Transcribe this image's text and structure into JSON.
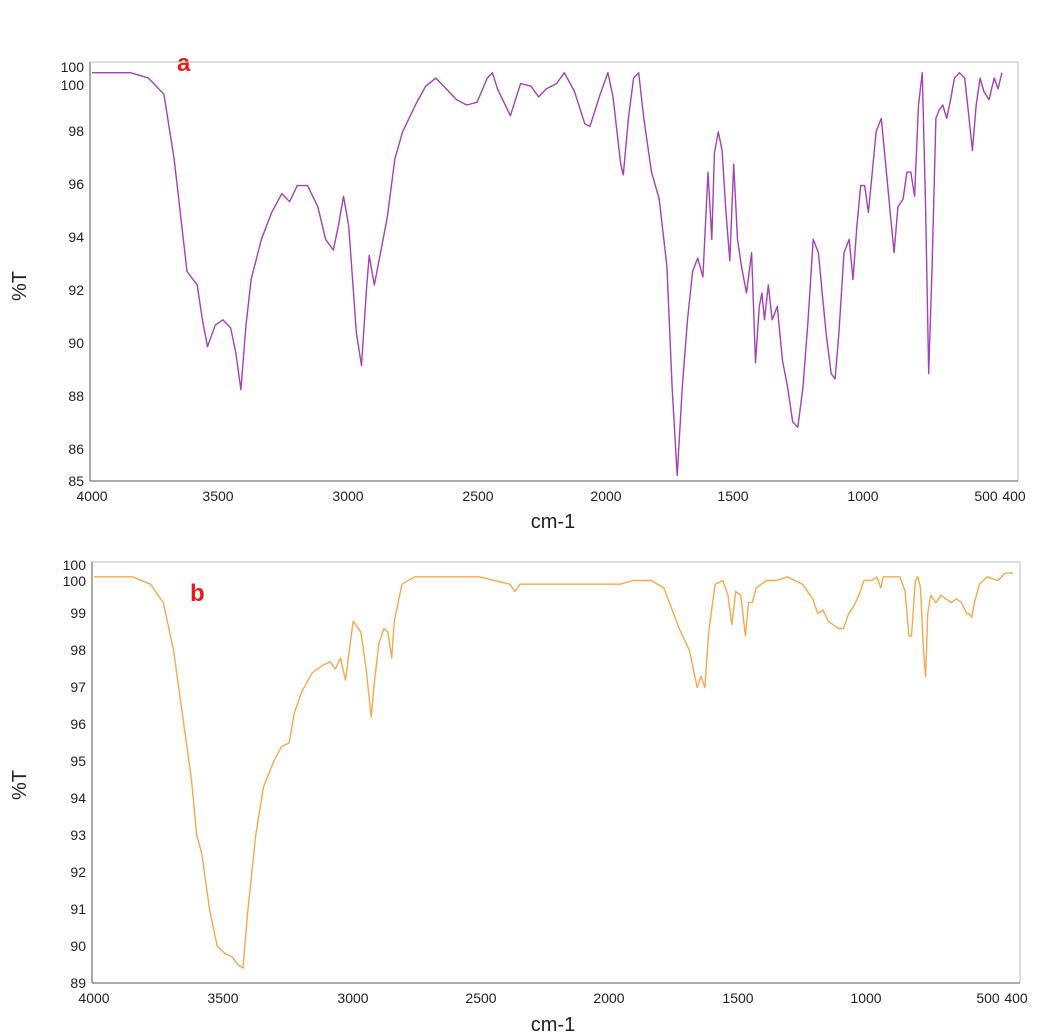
{
  "chart_data": [
    {
      "type": "line",
      "panel_label": "a",
      "panel_label_color": "#e41c1c",
      "xlabel": "cm-1",
      "ylabel": "%T",
      "xlim": [
        4000,
        400
      ],
      "ylim": [
        85,
        100.6
      ],
      "x_ticks": [
        "4000",
        "3500",
        "3000",
        "2500",
        "2000",
        "1500",
        "1000",
        "500",
        "400"
      ],
      "y_ticks": [
        "85",
        "86",
        "88",
        "90",
        "92",
        "94",
        "96",
        "98",
        "100",
        "100"
      ],
      "grid": false,
      "legend": "none",
      "series": [
        {
          "color": "#a341b5",
          "points": [
            [
              4000,
              100.2
            ],
            [
              3850,
              100.2
            ],
            [
              3780,
              100.0
            ],
            [
              3720,
              99.4
            ],
            [
              3680,
              97.0
            ],
            [
              3650,
              94.5
            ],
            [
              3630,
              92.8
            ],
            [
              3590,
              92.3
            ],
            [
              3570,
              91.0
            ],
            [
              3550,
              90.0
            ],
            [
              3520,
              90.8
            ],
            [
              3490,
              91.0
            ],
            [
              3460,
              90.7
            ],
            [
              3440,
              89.8
            ],
            [
              3420,
              88.4
            ],
            [
              3400,
              90.8
            ],
            [
              3380,
              92.5
            ],
            [
              3340,
              94.0
            ],
            [
              3300,
              95.0
            ],
            [
              3260,
              95.7
            ],
            [
              3230,
              95.4
            ],
            [
              3200,
              96.0
            ],
            [
              3160,
              96.0
            ],
            [
              3120,
              95.2
            ],
            [
              3090,
              94.0
            ],
            [
              3060,
              93.6
            ],
            [
              3040,
              94.5
            ],
            [
              3020,
              95.6
            ],
            [
              3000,
              94.5
            ],
            [
              2970,
              90.5
            ],
            [
              2950,
              89.3
            ],
            [
              2930,
              92.2
            ],
            [
              2920,
              93.4
            ],
            [
              2900,
              92.3
            ],
            [
              2880,
              93.3
            ],
            [
              2850,
              94.8
            ],
            [
              2820,
              97.0
            ],
            [
              2790,
              98.0
            ],
            [
              2740,
              99.0
            ],
            [
              2700,
              99.7
            ],
            [
              2660,
              100.0
            ],
            [
              2620,
              99.6
            ],
            [
              2580,
              99.2
            ],
            [
              2540,
              99.0
            ],
            [
              2500,
              99.1
            ],
            [
              2460,
              100.0
            ],
            [
              2440,
              100.2
            ],
            [
              2420,
              99.6
            ],
            [
              2370,
              98.6
            ],
            [
              2330,
              99.8
            ],
            [
              2290,
              99.7
            ],
            [
              2260,
              99.3
            ],
            [
              2230,
              99.6
            ],
            [
              2190,
              99.8
            ],
            [
              2160,
              100.2
            ],
            [
              2120,
              99.5
            ],
            [
              2080,
              98.3
            ],
            [
              2060,
              98.2
            ],
            [
              2020,
              99.4
            ],
            [
              1990,
              100.2
            ],
            [
              1970,
              99.3
            ],
            [
              1940,
              96.8
            ],
            [
              1930,
              96.4
            ],
            [
              1910,
              98.5
            ],
            [
              1890,
              100.0
            ],
            [
              1870,
              100.2
            ],
            [
              1850,
              98.5
            ],
            [
              1820,
              96.5
            ],
            [
              1790,
              95.5
            ],
            [
              1760,
              93.0
            ],
            [
              1740,
              88.5
            ],
            [
              1720,
              85.2
            ],
            [
              1700,
              88.5
            ],
            [
              1680,
              91.0
            ],
            [
              1660,
              92.8
            ],
            [
              1640,
              93.3
            ],
            [
              1620,
              92.6
            ],
            [
              1600,
              96.5
            ],
            [
              1585,
              94.0
            ],
            [
              1575,
              97.2
            ],
            [
              1560,
              98.0
            ],
            [
              1545,
              97.3
            ],
            [
              1530,
              95.0
            ],
            [
              1515,
              93.2
            ],
            [
              1500,
              96.8
            ],
            [
              1485,
              94.0
            ],
            [
              1470,
              93.0
            ],
            [
              1450,
              92.0
            ],
            [
              1430,
              93.5
            ],
            [
              1415,
              89.4
            ],
            [
              1400,
              91.5
            ],
            [
              1390,
              92.0
            ],
            [
              1380,
              91.0
            ],
            [
              1365,
              92.3
            ],
            [
              1350,
              91.0
            ],
            [
              1330,
              91.5
            ],
            [
              1310,
              89.5
            ],
            [
              1290,
              88.5
            ],
            [
              1270,
              87.2
            ],
            [
              1250,
              87.0
            ],
            [
              1230,
              88.5
            ],
            [
              1210,
              91.0
            ],
            [
              1190,
              94.0
            ],
            [
              1170,
              93.5
            ],
            [
              1155,
              92.0
            ],
            [
              1140,
              90.5
            ],
            [
              1120,
              89.0
            ],
            [
              1105,
              88.8
            ],
            [
              1090,
              90.5
            ],
            [
              1070,
              93.5
            ],
            [
              1050,
              94.0
            ],
            [
              1035,
              92.5
            ],
            [
              1020,
              94.5
            ],
            [
              1005,
              96.0
            ],
            [
              990,
              96.0
            ],
            [
              975,
              95.0
            ],
            [
              960,
              96.5
            ],
            [
              945,
              98.0
            ],
            [
              925,
              98.5
            ],
            [
              905,
              96.5
            ],
            [
              890,
              95.0
            ],
            [
              875,
              93.5
            ],
            [
              860,
              95.2
            ],
            [
              840,
              95.5
            ],
            [
              825,
              96.5
            ],
            [
              810,
              96.5
            ],
            [
              795,
              95.6
            ],
            [
              780,
              99.0
            ],
            [
              765,
              100.2
            ],
            [
              752,
              95.0
            ],
            [
              740,
              89.0
            ],
            [
              727,
              93.0
            ],
            [
              712,
              98.5
            ],
            [
              700,
              98.8
            ],
            [
              685,
              99.0
            ],
            [
              670,
              98.5
            ],
            [
              655,
              99.2
            ],
            [
              640,
              100.0
            ],
            [
              620,
              100.2
            ],
            [
              600,
              100.0
            ],
            [
              585,
              98.7
            ],
            [
              570,
              97.3
            ],
            [
              555,
              99.0
            ],
            [
              540,
              100.0
            ],
            [
              525,
              99.5
            ],
            [
              505,
              99.2
            ],
            [
              485,
              100.0
            ],
            [
              470,
              99.6
            ],
            [
              455,
              100.2
            ]
          ]
        }
      ]
    },
    {
      "type": "line",
      "panel_label": "b",
      "panel_label_color": "#e41c1c",
      "xlabel": "cm-1",
      "ylabel": "%T",
      "xlim": [
        4000,
        400
      ],
      "ylim": [
        89,
        100.4
      ],
      "x_ticks": [
        "4000",
        "3500",
        "3000",
        "2500",
        "2000",
        "1500",
        "1000",
        "500",
        "400"
      ],
      "y_ticks": [
        "89",
        "90",
        "91",
        "92",
        "93",
        "94",
        "95",
        "96",
        "97",
        "98",
        "99",
        "100",
        "100"
      ],
      "grid": false,
      "legend": "none",
      "series": [
        {
          "color": "#f7a84c",
          "points": [
            [
              4000,
              100.0
            ],
            [
              3850,
              100.0
            ],
            [
              3780,
              99.8
            ],
            [
              3730,
              99.3
            ],
            [
              3690,
              98.0
            ],
            [
              3650,
              96.0
            ],
            [
              3620,
              94.5
            ],
            [
              3600,
              93.0
            ],
            [
              3580,
              92.5
            ],
            [
              3550,
              91.0
            ],
            [
              3520,
              90.0
            ],
            [
              3490,
              89.8
            ],
            [
              3460,
              89.7
            ],
            [
              3440,
              89.5
            ],
            [
              3420,
              89.4
            ],
            [
              3400,
              91.0
            ],
            [
              3370,
              93.0
            ],
            [
              3340,
              94.3
            ],
            [
              3300,
              95.0
            ],
            [
              3270,
              95.4
            ],
            [
              3240,
              95.5
            ],
            [
              3220,
              96.3
            ],
            [
              3190,
              96.9
            ],
            [
              3150,
              97.4
            ],
            [
              3110,
              97.6
            ],
            [
              3080,
              97.7
            ],
            [
              3060,
              97.5
            ],
            [
              3040,
              97.8
            ],
            [
              3020,
              97.2
            ],
            [
              3000,
              98.3
            ],
            [
              2990,
              98.8
            ],
            [
              2960,
              98.5
            ],
            [
              2940,
              97.5
            ],
            [
              2920,
              96.2
            ],
            [
              2910,
              97.0
            ],
            [
              2890,
              98.2
            ],
            [
              2870,
              98.6
            ],
            [
              2855,
              98.5
            ],
            [
              2840,
              97.8
            ],
            [
              2830,
              98.8
            ],
            [
              2800,
              99.8
            ],
            [
              2750,
              100.0
            ],
            [
              2500,
              100.0
            ],
            [
              2380,
              99.8
            ],
            [
              2360,
              99.6
            ],
            [
              2340,
              99.8
            ],
            [
              2200,
              99.8
            ],
            [
              1950,
              99.8
            ],
            [
              1900,
              99.9
            ],
            [
              1830,
              99.9
            ],
            [
              1780,
              99.7
            ],
            [
              1720,
              98.6
            ],
            [
              1680,
              98.0
            ],
            [
              1650,
              97.0
            ],
            [
              1635,
              97.3
            ],
            [
              1620,
              97.0
            ],
            [
              1605,
              98.5
            ],
            [
              1580,
              99.8
            ],
            [
              1550,
              99.9
            ],
            [
              1530,
              99.5
            ],
            [
              1515,
              98.7
            ],
            [
              1500,
              99.6
            ],
            [
              1480,
              99.5
            ],
            [
              1462,
              98.4
            ],
            [
              1450,
              99.3
            ],
            [
              1435,
              99.3
            ],
            [
              1420,
              99.7
            ],
            [
              1380,
              99.9
            ],
            [
              1340,
              99.9
            ],
            [
              1300,
              100.0
            ],
            [
              1240,
              99.8
            ],
            [
              1200,
              99.4
            ],
            [
              1180,
              99.0
            ],
            [
              1160,
              99.1
            ],
            [
              1140,
              98.8
            ],
            [
              1120,
              98.7
            ],
            [
              1100,
              98.6
            ],
            [
              1080,
              98.6
            ],
            [
              1060,
              99.0
            ],
            [
              1040,
              99.2
            ],
            [
              1020,
              99.5
            ],
            [
              1000,
              99.9
            ],
            [
              970,
              99.9
            ],
            [
              950,
              100.0
            ],
            [
              935,
              99.7
            ],
            [
              925,
              100.0
            ],
            [
              900,
              100.0
            ],
            [
              860,
              100.0
            ],
            [
              840,
              99.6
            ],
            [
              825,
              98.4
            ],
            [
              815,
              98.4
            ],
            [
              800,
              99.9
            ],
            [
              790,
              100.0
            ],
            [
              780,
              99.7
            ],
            [
              768,
              98.0
            ],
            [
              760,
              97.3
            ],
            [
              752,
              99.0
            ],
            [
              740,
              99.5
            ],
            [
              720,
              99.3
            ],
            [
              700,
              99.5
            ],
            [
              680,
              99.4
            ],
            [
              660,
              99.3
            ],
            [
              640,
              99.4
            ],
            [
              620,
              99.3
            ],
            [
              600,
              99.0
            ],
            [
              590,
              99.0
            ],
            [
              580,
              98.9
            ],
            [
              570,
              99.3
            ],
            [
              550,
              99.8
            ],
            [
              520,
              100.0
            ],
            [
              480,
              99.9
            ],
            [
              450,
              100.1
            ],
            [
              420,
              100.1
            ]
          ]
        }
      ]
    }
  ]
}
